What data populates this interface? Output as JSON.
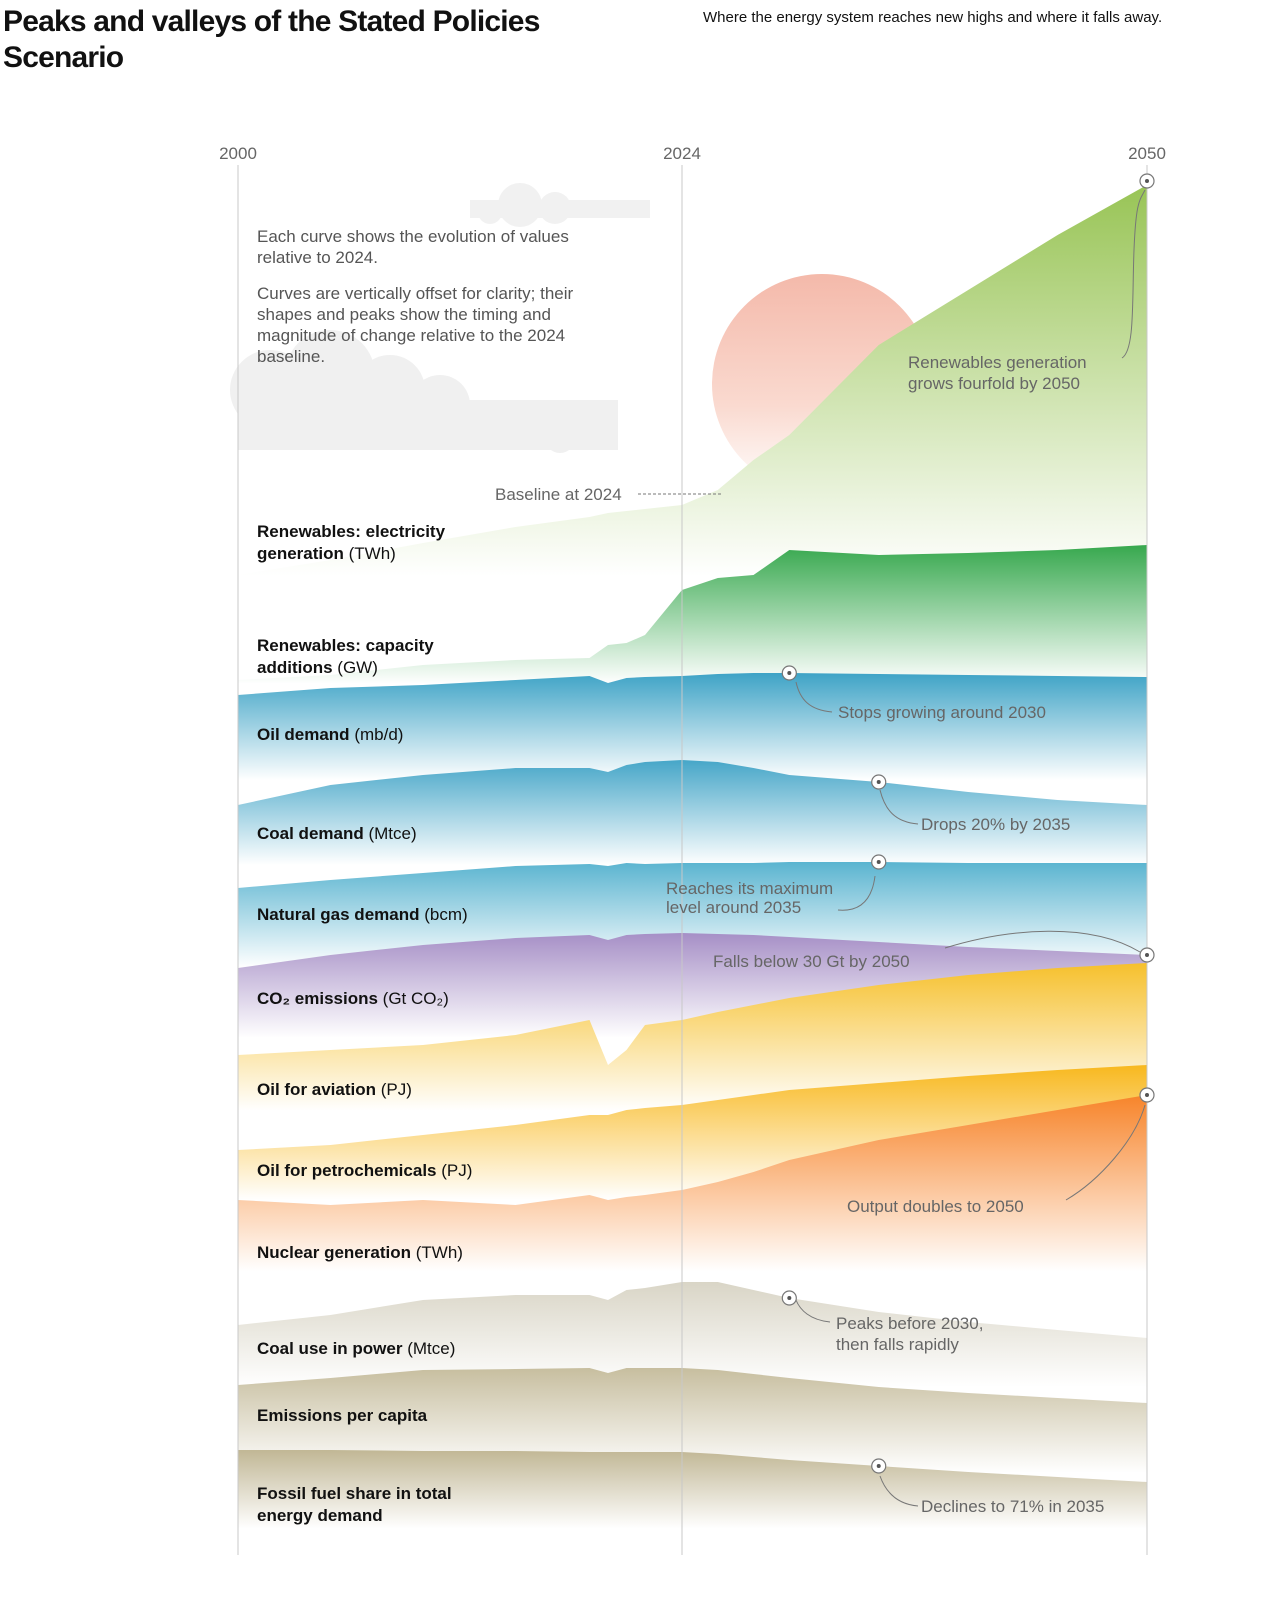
{
  "chart_data": {
    "type": "ridgeline",
    "title": "Peaks and valleys of the Stated Policies Scenario",
    "subtitle": "Where the energy system reaches new highs and where it falls away.",
    "notes": [
      "Each curve shows the evolution of values relative to 2024.",
      "Curves are vertically offset for clarity; their shapes and peaks show the timing and magnitude of change relative to the 2024 baseline."
    ],
    "xlim": [
      2000,
      2050
    ],
    "xticks": [
      2000,
      2024,
      2050
    ],
    "x": [
      2000,
      2005,
      2010,
      2015,
      2019,
      2020,
      2021,
      2022,
      2024,
      2026,
      2028,
      2030,
      2035,
      2040,
      2045,
      2050
    ],
    "series": [
      {
        "name": "Renewables: electricity generation",
        "unit": "(TWh)",
        "color": "#98c455",
        "values": [
          0.3,
          0.45,
          0.62,
          0.78,
          0.88,
          0.92,
          0.94,
          0.96,
          1.0,
          1.15,
          1.45,
          1.7,
          2.6,
          3.15,
          3.7,
          4.2
        ]
      },
      {
        "name": "Renewables: capacity additions",
        "unit": "(GW)",
        "color": "#37a84e",
        "values": [
          0.1,
          0.15,
          0.25,
          0.3,
          0.32,
          0.45,
          0.47,
          0.55,
          1.0,
          1.12,
          1.15,
          1.4,
          1.35,
          1.37,
          1.4,
          1.45
        ]
      },
      {
        "name": "Oil demand",
        "unit": "(mb/d)",
        "color": "#3ea3c6",
        "values": [
          0.81,
          0.88,
          0.91,
          0.96,
          1.0,
          0.93,
          0.98,
          0.99,
          1.0,
          1.02,
          1.03,
          1.03,
          1.02,
          1.01,
          1.0,
          0.99
        ]
      },
      {
        "name": "Coal demand",
        "unit": "(Mtce)",
        "color": "#46a6c8",
        "values": [
          0.55,
          0.75,
          0.85,
          0.92,
          0.92,
          0.88,
          0.95,
          0.98,
          1.0,
          0.98,
          0.92,
          0.85,
          0.78,
          0.68,
          0.6,
          0.55
        ]
      },
      {
        "name": "Natural gas demand",
        "unit": "(bcm)",
        "color": "#5ab4d0",
        "values": [
          0.75,
          0.83,
          0.9,
          0.97,
          0.99,
          0.97,
          1.0,
          0.99,
          1.0,
          1.0,
          1.0,
          1.01,
          1.01,
          1.0,
          1.0,
          1.0
        ]
      },
      {
        "name": "CO₂ emissions",
        "unit": "(Gt CO₂)",
        "color": "#a68fc6",
        "values": [
          0.65,
          0.78,
          0.88,
          0.95,
          0.98,
          0.93,
          0.98,
          0.99,
          1.0,
          0.99,
          0.98,
          0.96,
          0.91,
          0.86,
          0.82,
          0.78
        ]
      },
      {
        "name": "Oil for aviation",
        "unit": "(PJ)",
        "color": "#f6c02c",
        "values": [
          0.65,
          0.7,
          0.75,
          0.85,
          1.0,
          0.55,
          0.7,
          0.95,
          1.0,
          1.08,
          1.15,
          1.22,
          1.35,
          1.45,
          1.52,
          1.57
        ]
      },
      {
        "name": "Oil for petrochemicals",
        "unit": "(PJ)",
        "color": "#f8b81e",
        "values": [
          0.55,
          0.6,
          0.7,
          0.8,
          0.9,
          0.9,
          0.95,
          0.97,
          1.0,
          1.05,
          1.1,
          1.15,
          1.22,
          1.29,
          1.35,
          1.4
        ]
      },
      {
        "name": "Nuclear generation",
        "unit": "(TWh)",
        "color": "#f7842a",
        "values": [
          0.9,
          0.85,
          0.9,
          0.85,
          0.95,
          0.9,
          0.93,
          0.95,
          1.0,
          1.08,
          1.18,
          1.3,
          1.5,
          1.65,
          1.8,
          1.95
        ]
      },
      {
        "name": "Coal use in power",
        "unit": "(Mtce)",
        "color": "#d9d5c6",
        "values": [
          0.57,
          0.67,
          0.82,
          0.87,
          0.87,
          0.82,
          0.92,
          0.94,
          1.0,
          1.0,
          0.92,
          0.84,
          0.7,
          0.6,
          0.52,
          0.44
        ]
      },
      {
        "name": "Emissions per capita",
        "color": "#c7be9f",
        "values": [
          0.83,
          0.9,
          0.98,
          0.99,
          1.0,
          0.95,
          1.0,
          1.0,
          1.0,
          0.98,
          0.94,
          0.9,
          0.81,
          0.75,
          0.7,
          0.65
        ]
      },
      {
        "name": "Fossil fuel share in total energy demand",
        "color": "#c1b795",
        "values": [
          1.02,
          1.02,
          1.01,
          1.01,
          1.0,
          1.0,
          1.0,
          1.0,
          1.0,
          0.98,
          0.95,
          0.92,
          0.86,
          0.8,
          0.75,
          0.7
        ]
      }
    ],
    "annotations": [
      [
        "Renewables generation",
        "grows fourfold by 2050"
      ],
      [
        "Stops growing around 2030"
      ],
      [
        "Drops 20% by 2035"
      ],
      [
        "Reaches its maximum",
        "level around 2035"
      ],
      [
        "Falls below 30 Gt by 2050"
      ],
      [
        "Output doubles to 2050"
      ],
      [
        "Peaks before 2030,",
        "then falls rapidly"
      ],
      [
        "Declines to 71% in 2035"
      ],
      [
        "Baseline at 2024"
      ]
    ]
  }
}
